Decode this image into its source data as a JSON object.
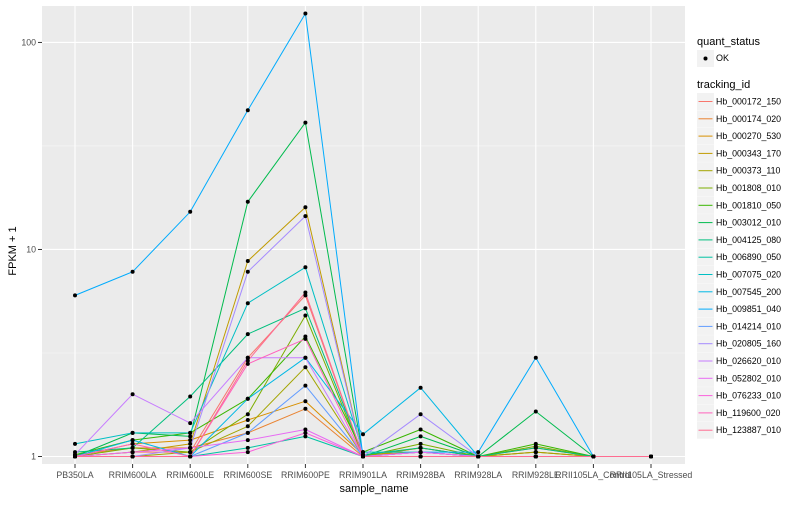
{
  "chart_data": {
    "type": "line",
    "xlabel": "sample_name",
    "ylabel": "FPKM + 1",
    "y_scale": "log10",
    "ylim": [
      0.92,
      150
    ],
    "y_ticks": [
      1,
      10,
      100
    ],
    "y_tick_labels": [
      "1",
      "10",
      "100"
    ],
    "panel_background": "#EBEBEB",
    "grid": true,
    "legend_position": "right",
    "categories": [
      "PB350LA",
      "RRIM600LA",
      "RRIM600LE",
      "RRIM600SE",
      "RRIM600PE",
      "RRIM901LA",
      "RRIM928BA",
      "RRIM928LA",
      "RRIM928LE",
      "RRII105LA_Control",
      "RRII105LA_Stressed"
    ],
    "legend": {
      "quant_title": "quant_status",
      "quant_label": "OK",
      "tracking_title": "tracking_id"
    },
    "series": [
      {
        "name": "Hb_000172_150",
        "color": "#F8766D",
        "values": [
          1.0,
          1.05,
          1.05,
          3.0,
          6.0,
          1.0,
          1.05,
          1.0,
          1.05,
          1.0,
          1.0
        ]
      },
      {
        "name": "Hb_000174_020",
        "color": "#EA8331",
        "values": [
          1.02,
          1.1,
          1.1,
          1.3,
          1.7,
          1.0,
          1.1,
          1.0,
          1.1,
          1.0,
          1.0
        ]
      },
      {
        "name": "Hb_000270_530",
        "color": "#D89000",
        "values": [
          1.0,
          1.15,
          1.2,
          1.5,
          1.85,
          1.02,
          1.05,
          1.0,
          1.0,
          1.0,
          1.0
        ]
      },
      {
        "name": "Hb_000343_170",
        "color": "#C09B00",
        "values": [
          1.0,
          1.05,
          1.15,
          8.8,
          16.0,
          1.0,
          1.05,
          1.0,
          1.05,
          1.0,
          1.0
        ]
      },
      {
        "name": "Hb_000373_110",
        "color": "#A3A500",
        "values": [
          1.0,
          1.0,
          1.05,
          1.4,
          2.7,
          1.0,
          1.1,
          1.0,
          1.05,
          1.0,
          1.0
        ]
      },
      {
        "name": "Hb_001808_010",
        "color": "#7CAE00",
        "values": [
          1.0,
          1.1,
          1.05,
          1.6,
          4.8,
          1.0,
          1.15,
          1.0,
          1.12,
          1.0,
          1.0
        ]
      },
      {
        "name": "Hb_001810_050",
        "color": "#39B600",
        "values": [
          1.02,
          1.2,
          1.3,
          1.9,
          3.8,
          1.05,
          1.35,
          1.0,
          1.15,
          1.0,
          1.0
        ]
      },
      {
        "name": "Hb_003012_010",
        "color": "#00BB4E",
        "values": [
          1.0,
          1.3,
          1.25,
          17.0,
          41.0,
          1.0,
          1.25,
          1.0,
          1.65,
          1.0,
          1.0
        ]
      },
      {
        "name": "Hb_004125_080",
        "color": "#00BF7D",
        "values": [
          1.05,
          1.1,
          1.95,
          3.9,
          5.2,
          1.02,
          1.1,
          1.0,
          1.1,
          1.0,
          1.0
        ]
      },
      {
        "name": "Hb_006890_050",
        "color": "#00C1A3",
        "values": [
          1.0,
          1.0,
          1.0,
          1.1,
          1.25,
          1.0,
          1.0,
          1.0,
          1.0,
          1.0,
          1.0
        ]
      },
      {
        "name": "Hb_007075_020",
        "color": "#00BFC4",
        "values": [
          1.15,
          1.3,
          1.3,
          5.5,
          8.2,
          1.05,
          1.05,
          1.0,
          1.0,
          1.0,
          1.0
        ]
      },
      {
        "name": "Hb_007545_200",
        "color": "#00B8E5",
        "values": [
          1.0,
          1.2,
          1.0,
          1.9,
          3.0,
          1.28,
          2.15,
          1.0,
          1.0,
          1.0,
          1.0
        ]
      },
      {
        "name": "Hb_009851_040",
        "color": "#00ABFD",
        "values": [
          6.0,
          7.8,
          15.2,
          47.0,
          138.0,
          1.0,
          1.05,
          1.05,
          3.0,
          1.0,
          1.0
        ]
      },
      {
        "name": "Hb_014214_010",
        "color": "#619CFF",
        "values": [
          1.0,
          1.0,
          1.0,
          1.3,
          2.2,
          1.0,
          1.0,
          1.0,
          1.0,
          1.0,
          1.0
        ]
      },
      {
        "name": "Hb_020805_160",
        "color": "#A58AFF",
        "values": [
          1.0,
          1.0,
          1.1,
          7.8,
          14.5,
          1.0,
          1.6,
          1.0,
          1.0,
          1.0,
          1.0
        ]
      },
      {
        "name": "Hb_026620_010",
        "color": "#C77CFF",
        "values": [
          1.02,
          2.0,
          1.45,
          3.0,
          3.0,
          1.0,
          1.05,
          1.0,
          1.0,
          1.0,
          1.0
        ]
      },
      {
        "name": "Hb_052802_010",
        "color": "#E76BF3",
        "values": [
          1.0,
          1.05,
          1.1,
          1.2,
          1.35,
          1.0,
          1.05,
          1.0,
          1.0,
          1.0,
          1.0
        ]
      },
      {
        "name": "Hb_076233_010",
        "color": "#FA62DB",
        "values": [
          1.0,
          1.0,
          1.0,
          1.05,
          1.3,
          1.0,
          1.0,
          1.0,
          1.0,
          1.0,
          1.0
        ]
      },
      {
        "name": "Hb_119600_020",
        "color": "#FF62BC",
        "values": [
          1.0,
          1.15,
          1.0,
          2.8,
          3.7,
          1.0,
          1.0,
          1.0,
          1.0,
          1.0,
          1.0
        ]
      },
      {
        "name": "Hb_123887_010",
        "color": "#FF6C91",
        "values": [
          1.0,
          1.0,
          1.0,
          2.9,
          6.2,
          1.0,
          1.0,
          1.0,
          1.0,
          1.0,
          1.0
        ]
      }
    ]
  }
}
